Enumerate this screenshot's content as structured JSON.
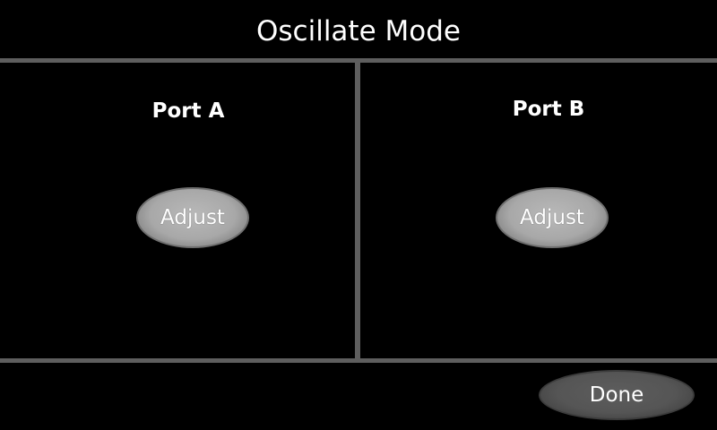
{
  "header": {
    "title": "Oscillate Mode"
  },
  "ports": [
    {
      "label": "Port A",
      "button_label": "Adjust"
    },
    {
      "label": "Port B",
      "button_label": "Adjust"
    }
  ],
  "footer": {
    "done_label": "Done"
  },
  "colors": {
    "background": "#000000",
    "divider": "#5e5e5e",
    "adjust_button": "#a8a8a8",
    "done_button": "#555555",
    "text": "#ffffff"
  }
}
